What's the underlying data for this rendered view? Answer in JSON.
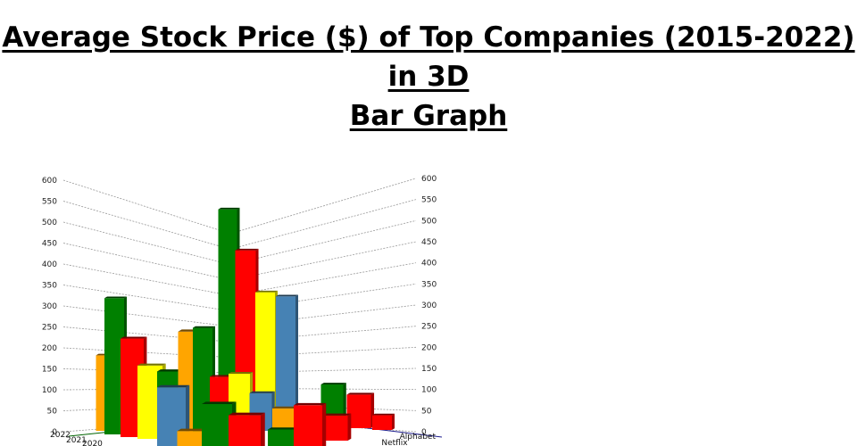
{
  "page": {
    "title_line1": "Average Stock Price ($) of Top Companies (2015-2022) in 3D",
    "title_line2": "Bar Graph"
  },
  "chart_data": {
    "type": "bar",
    "subtype": "3d-bar",
    "title": "Average Stock Price ($) of Top Companies (2015-2022) in 3D Bar Graph",
    "xlabel": "",
    "ylabel": "",
    "ylim": [
      0,
      600
    ],
    "yticks": [
      0,
      50,
      100,
      150,
      200,
      250,
      300,
      350,
      400,
      450,
      500,
      550,
      600
    ],
    "grid": true,
    "categories": [
      "Alphabet",
      "Netflix"
    ],
    "depth_categories": [
      "2022",
      "2021",
      "2020"
    ],
    "series": [
      {
        "values": [
          180,
          90
        ]
      },
      {
        "values": [
          325,
          100
        ]
      },
      {
        "values": [
          235,
          80
        ]
      },
      {
        "values": [
          175,
          35
        ]
      },
      {
        "values": [
          165,
          30
        ]
      },
      {
        "values": [
          140,
          40
        ]
      },
      {
        "values": [
          260,
          60
        ]
      },
      {
        "values": [
          265,
          50
        ]
      },
      {
        "values": [
          505,
          60
        ]
      },
      {
        "values": [
          420,
          110
        ]
      },
      {
        "values": [
          320,
          130
        ]
      },
      {
        "values": [
          310,
          90
        ]
      }
    ],
    "colors": {
      "orange": "#ffa500",
      "green": "#008000",
      "red": "#ff0000",
      "yellow": "#ffff00",
      "steelblue": "#4682b4"
    }
  }
}
